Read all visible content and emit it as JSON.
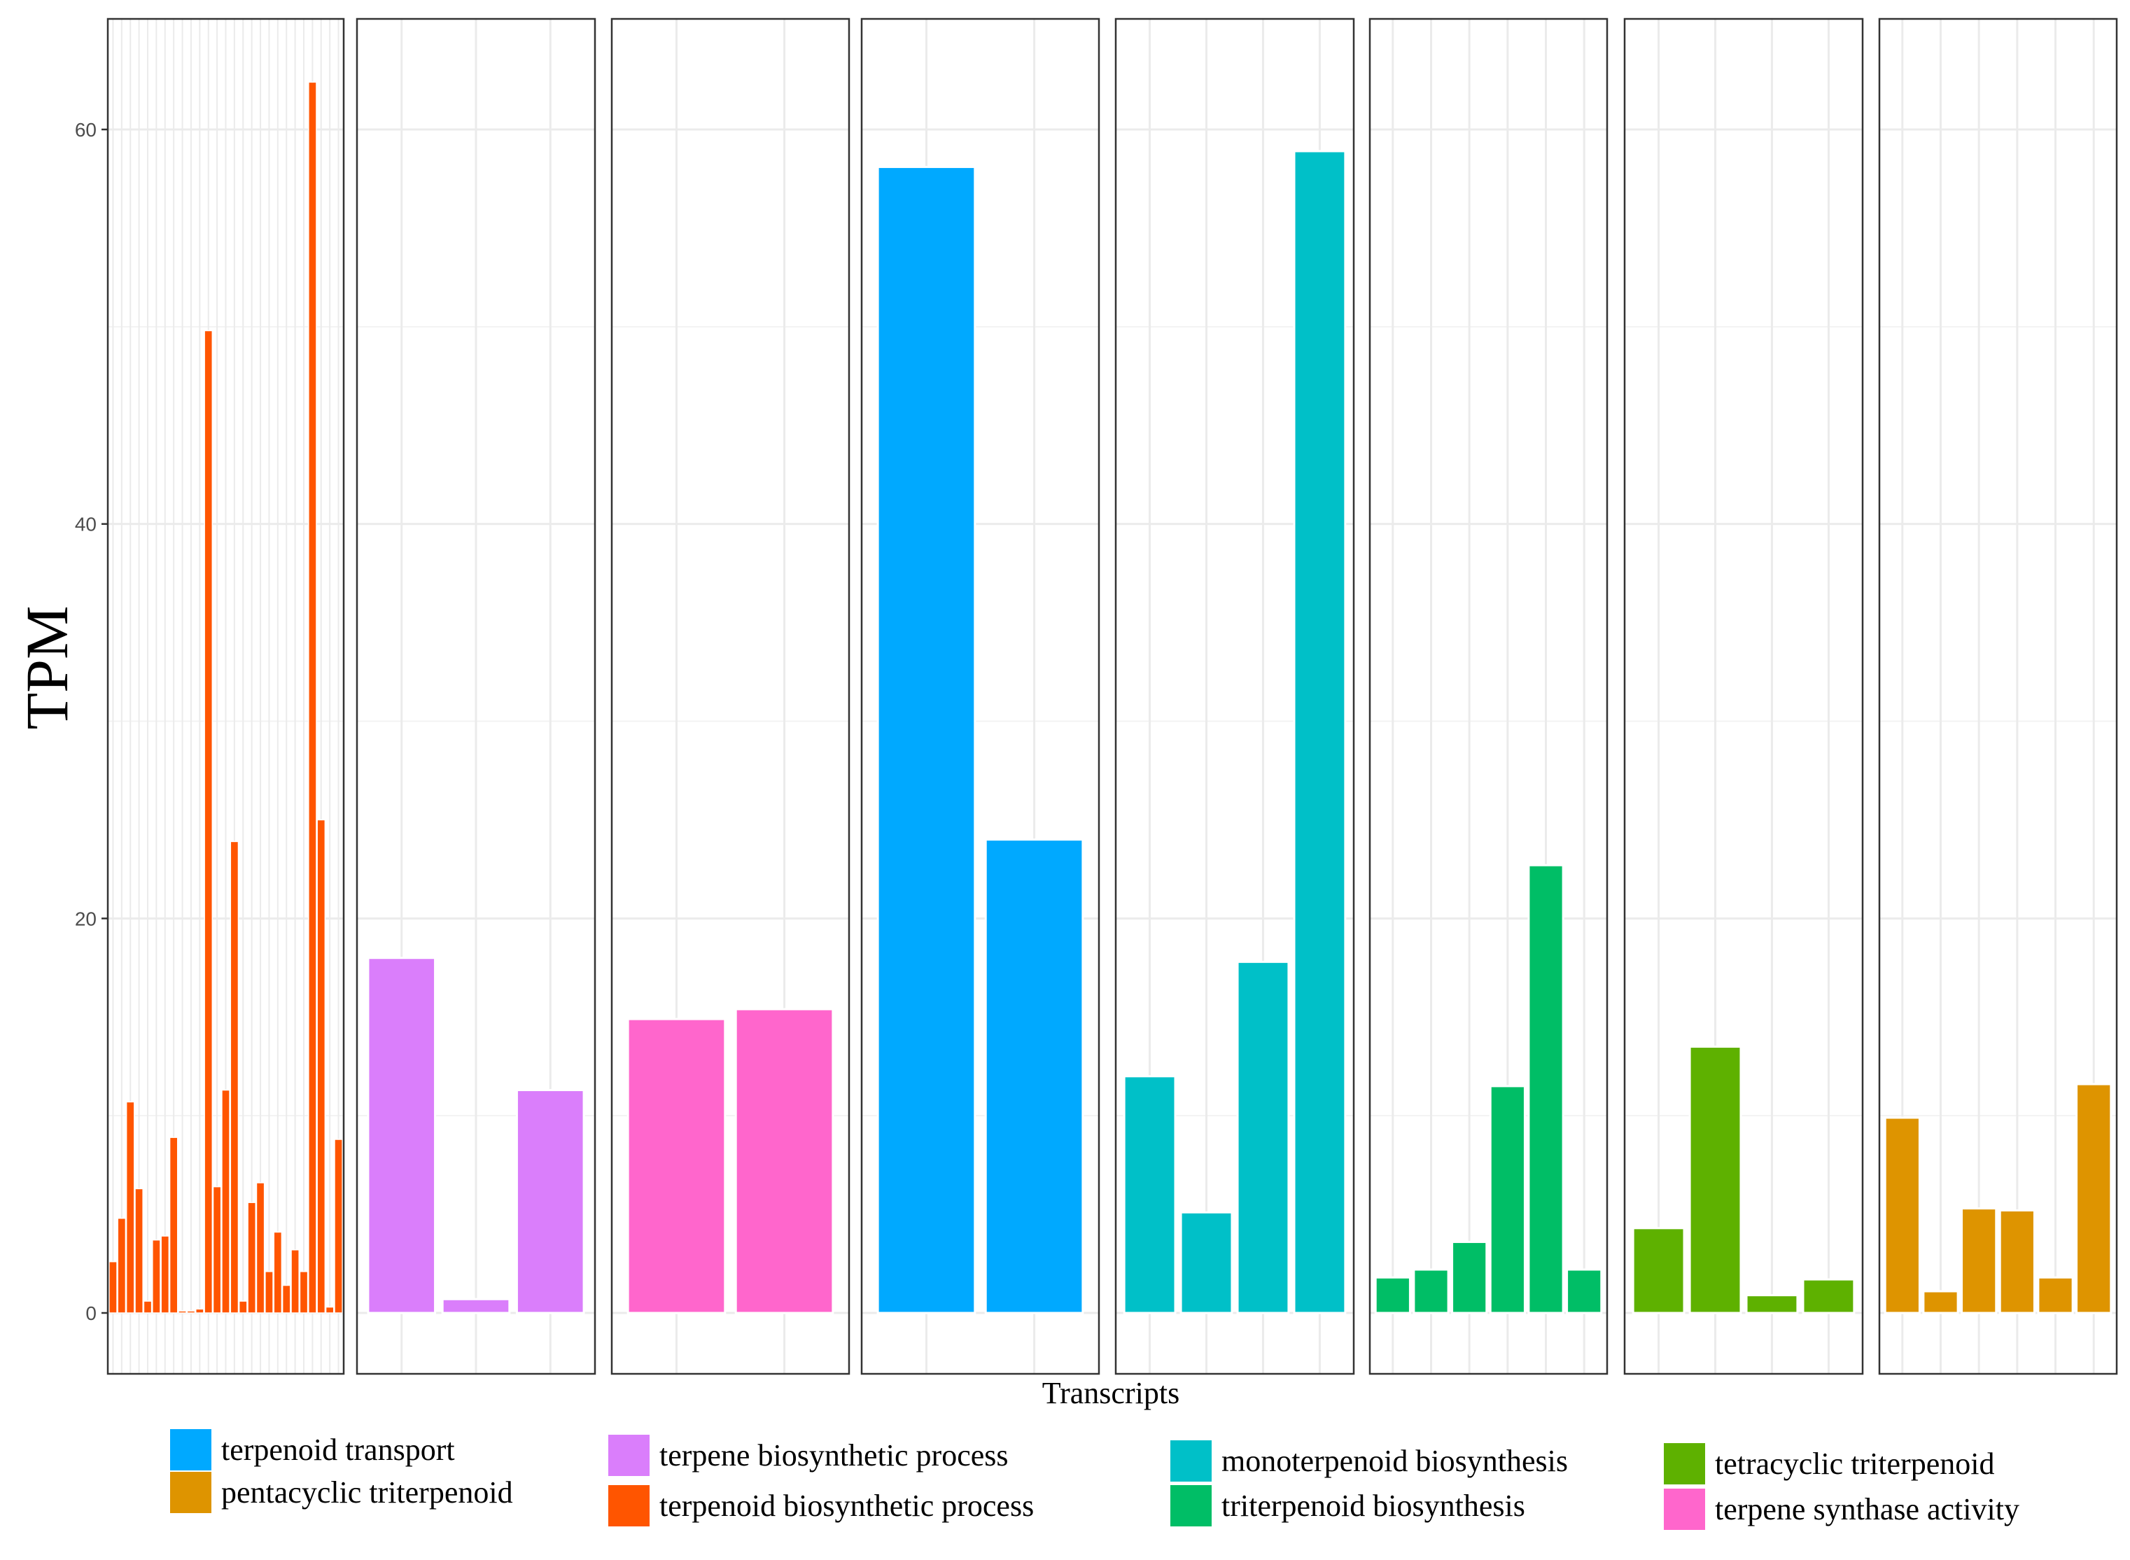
{
  "chart_data": {
    "type": "bar",
    "ylabel": "TPM",
    "xlabel": "Transcripts",
    "ylim": [
      -3,
      66
    ],
    "y_ticks": [
      0,
      20,
      40,
      60
    ],
    "y_tick_labels": [
      "0",
      "20",
      "40",
      "60"
    ],
    "grid": true,
    "facets": [
      {
        "name": "terpenoid biosynthetic process",
        "color": "#FF5500",
        "values": [
          2.6,
          4.8,
          10.7,
          6.3,
          0.6,
          3.7,
          3.9,
          8.9,
          0.1,
          0.1,
          0.2,
          49.8,
          6.4,
          11.3,
          23.9,
          0.6,
          5.6,
          6.6,
          2.1,
          4.1,
          1.4,
          3.2,
          2.1,
          62.4,
          25.0,
          0.3,
          8.8
        ]
      },
      {
        "name": "terpene biosynthetic process",
        "color": "#DA7EFB",
        "values": [
          18.0,
          0.7,
          11.3
        ]
      },
      {
        "name": "terpene synthase activity",
        "color": "#FF66CC",
        "values": [
          14.9,
          15.4
        ]
      },
      {
        "name": "terpenoid transport",
        "color": "#00A9FF",
        "values": [
          58.1,
          24.0
        ]
      },
      {
        "name": "monoterpenoid biosynthesis",
        "color": "#00C0C8",
        "values": [
          12.0,
          5.1,
          17.8,
          58.9
        ]
      },
      {
        "name": "triterpenoid biosynthesis",
        "color": "#00BE66",
        "values": [
          1.8,
          2.2,
          3.6,
          11.5,
          22.7,
          2.2
        ]
      },
      {
        "name": "tetracyclic triterpenoid",
        "color": "#5EB100",
        "values": [
          4.3,
          13.5,
          0.9,
          1.7
        ]
      },
      {
        "name": "pentacyclic triterpenoid",
        "color": "#DE9400",
        "values": [
          9.9,
          1.1,
          5.3,
          5.2,
          1.8,
          11.6
        ]
      }
    ],
    "legend": {
      "placement": "bottom",
      "columns": [
        [
          {
            "label": "terpenoid transport",
            "color": "#00A9FF"
          },
          {
            "label": "pentacyclic triterpenoid",
            "color": "#DE9400"
          }
        ],
        [
          {
            "label": "terpene biosynthetic process",
            "color": "#DA7EFB"
          },
          {
            "label": "terpenoid biosynthetic process",
            "color": "#FF5500"
          }
        ],
        [
          {
            "label": "monoterpenoid biosynthesis",
            "color": "#00C0C8"
          },
          {
            "label": "triterpenoid biosynthesis",
            "color": "#00BE66"
          }
        ],
        [
          {
            "label": "tetracyclic triterpenoid",
            "color": "#5EB100"
          },
          {
            "label": "terpene synthase activity",
            "color": "#FF66CC"
          }
        ]
      ]
    }
  }
}
